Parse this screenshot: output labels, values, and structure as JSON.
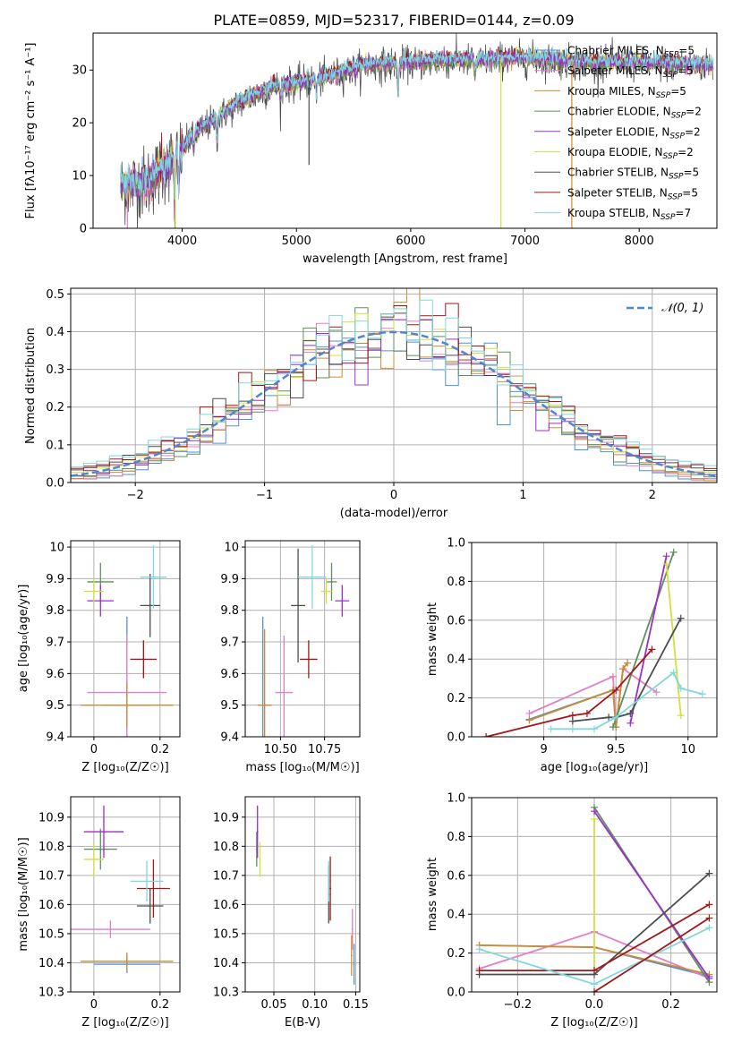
{
  "figure_title": "PLATE=0859, MJD=52317, FIBERID=0144, z=0.09",
  "colors": {
    "Chabrier MILES": "#4c92e0",
    "Salpeter MILES": "#e27fc5",
    "Kroupa MILES": "#d08a2f",
    "Chabrier ELODIE": "#5e8f5e",
    "Salpeter ELODIE": "#9b30c8",
    "Kroupa ELODIE": "#d0e040",
    "Chabrier STELIB": "#4d4d4d",
    "Salpeter STELIB": "#a11818",
    "Kroupa STELIB": "#7fd8e0",
    "gauss": "#4f86cf"
  },
  "chart_data": [
    {
      "id": "spectrum",
      "type": "line",
      "title": "PLATE=0859, MJD=52317, FIBERID=0144, z=0.09",
      "xlabel": "wavelength [Angstrom, rest frame]",
      "ylabel": "Flux [fλ10⁻¹⁷ erg cm⁻² s⁻¹ A⁻¹]",
      "xlim": [
        3220,
        8680
      ],
      "ylim": [
        0,
        37
      ],
      "xticks": [
        4000,
        5000,
        6000,
        7000,
        8000
      ],
      "yticks": [
        0,
        10,
        20,
        30
      ],
      "legend": "top-right",
      "series": [
        {
          "name": "Chabrier MILES, N_SSP=5",
          "key": "Chabrier MILES"
        },
        {
          "name": "Salpeter MILES, N_SSP=5",
          "key": "Salpeter MILES"
        },
        {
          "name": "Kroupa MILES, N_SSP=5",
          "key": "Kroupa MILES"
        },
        {
          "name": "Chabrier ELODIE, N_SSP=2",
          "key": "Chabrier ELODIE"
        },
        {
          "name": "Salpeter ELODIE, N_SSP=2",
          "key": "Salpeter ELODIE"
        },
        {
          "name": "Kroupa ELODIE, N_SSP=2",
          "key": "Kroupa ELODIE"
        },
        {
          "name": "Chabrier STELIB, N_SSP=5",
          "key": "Chabrier STELIB"
        },
        {
          "name": "Salpeter STELIB, N_SSP=5",
          "key": "Salpeter STELIB"
        },
        {
          "name": "Kroupa STELIB, N_SSP=7",
          "key": "Kroupa STELIB"
        }
      ],
      "continuum": [
        [
          3460,
          8
        ],
        [
          3700,
          9
        ],
        [
          3960,
          14
        ],
        [
          4100,
          18
        ],
        [
          4300,
          21
        ],
        [
          4500,
          24
        ],
        [
          4800,
          27
        ],
        [
          5100,
          28
        ],
        [
          5300,
          29
        ],
        [
          5600,
          31
        ],
        [
          5900,
          31.5
        ],
        [
          6000,
          31.5
        ],
        [
          6300,
          32
        ],
        [
          6600,
          32
        ],
        [
          6900,
          32.5
        ],
        [
          7300,
          32
        ],
        [
          7500,
          31.5
        ],
        [
          8000,
          31.5
        ],
        [
          8700,
          31
        ]
      ]
    },
    {
      "id": "residuals",
      "type": "line",
      "xlabel": "(data-model)/error",
      "ylabel": "Normed distribution",
      "xlim": [
        -2.5,
        2.5
      ],
      "ylim": [
        0,
        0.515
      ],
      "xticks": [
        -2,
        -1,
        0,
        1,
        2
      ],
      "yticks": [
        0.0,
        0.1,
        0.2,
        0.3,
        0.4,
        0.5
      ],
      "grid": true,
      "legend": "top-right",
      "gauss_label": "𝒩(0, 1)"
    },
    {
      "id": "age-vs-Z",
      "type": "scatter",
      "xlabel": "Z [log₁₀(Z/Z☉)]",
      "ylabel": "age  [log₁₀(age/yr)]",
      "xlim": [
        -0.07,
        0.26
      ],
      "ylim": [
        9.4,
        10.02
      ],
      "xticks": [
        0.0,
        0.2
      ],
      "yticks": [
        9.4,
        9.5,
        9.6,
        9.7,
        9.8,
        9.9,
        10.0
      ],
      "grid": true,
      "points": [
        {
          "key": "Chabrier MILES",
          "x": 0.1,
          "y": 9.5,
          "xerr": 0.07,
          "yerr": 0.28
        },
        {
          "key": "Salpeter MILES",
          "x": 0.1,
          "y": 9.54,
          "xerr": 0.12,
          "yerr": 0.18
        },
        {
          "key": "Kroupa MILES",
          "x": 0.1,
          "y": 9.5,
          "xerr": 0.14,
          "yerr": 0.07
        },
        {
          "key": "Chabrier ELODIE",
          "x": 0.02,
          "y": 9.89,
          "xerr": 0.04,
          "yerr": 0.06
        },
        {
          "key": "Salpeter ELODIE",
          "x": 0.02,
          "y": 9.83,
          "xerr": 0.04,
          "yerr": 0.05
        },
        {
          "key": "Kroupa ELODIE",
          "x": 0.0,
          "y": 9.86,
          "xerr": 0.03,
          "yerr": 0.04
        },
        {
          "key": "Chabrier STELIB",
          "x": 0.17,
          "y": 9.815,
          "xerr": 0.03,
          "yerr": 0.1
        },
        {
          "key": "Salpeter STELIB",
          "x": 0.15,
          "y": 9.645,
          "xerr": 0.04,
          "yerr": 0.06
        },
        {
          "key": "Kroupa STELIB",
          "x": 0.18,
          "y": 9.905,
          "xerr": 0.04,
          "yerr": 0.1
        }
      ]
    },
    {
      "id": "age-vs-mass",
      "type": "scatter",
      "xlabel": "mass [log₁₀(M/M☉)]",
      "xlim": [
        10.3,
        10.95
      ],
      "ylim": [
        9.4,
        10.02
      ],
      "xticks": [
        10.5,
        10.75
      ],
      "xticklabels": [
        "10.50",
        "10.75"
      ],
      "yticks": [
        9.4,
        9.5,
        9.6,
        9.7,
        9.8,
        9.9,
        10.0
      ],
      "grid": true,
      "points": [
        {
          "key": "Chabrier MILES",
          "x": 10.4,
          "y": 9.5,
          "xerr": 0.02,
          "yerr": 0.28
        },
        {
          "key": "Salpeter MILES",
          "x": 10.52,
          "y": 9.54,
          "xerr": 0.05,
          "yerr": 0.18
        },
        {
          "key": "Kroupa MILES",
          "x": 10.41,
          "y": 9.5,
          "xerr": 0.04,
          "yerr": 0.24
        },
        {
          "key": "Chabrier ELODIE",
          "x": 10.79,
          "y": 9.89,
          "xerr": 0.03,
          "yerr": 0.06
        },
        {
          "key": "Salpeter ELODIE",
          "x": 10.85,
          "y": 9.83,
          "xerr": 0.04,
          "yerr": 0.05
        },
        {
          "key": "Kroupa ELODIE",
          "x": 10.76,
          "y": 9.86,
          "xerr": 0.03,
          "yerr": 0.04
        },
        {
          "key": "Chabrier STELIB",
          "x": 10.6,
          "y": 9.815,
          "xerr": 0.04,
          "yerr": 0.18
        },
        {
          "key": "Salpeter STELIB",
          "x": 10.66,
          "y": 9.645,
          "xerr": 0.05,
          "yerr": 0.06
        },
        {
          "key": "Kroupa STELIB",
          "x": 10.68,
          "y": 9.905,
          "xerr": 0.08,
          "yerr": 0.1
        }
      ]
    },
    {
      "id": "weight-vs-age",
      "type": "line",
      "xlabel": "age  [log₁₀(age/yr)]",
      "ylabel": "mass weight",
      "xlim": [
        8.5,
        10.2
      ],
      "ylim": [
        0,
        1.0
      ],
      "xticks": [
        9.0,
        9.5,
        10.0
      ],
      "yticks": [
        0.0,
        0.2,
        0.4,
        0.6,
        0.8,
        1.0
      ],
      "grid": true,
      "series": [
        {
          "key": "Chabrier MILES",
          "x": [
            8.9,
            9.48,
            9.5,
            9.55,
            9.58
          ],
          "y": [
            0.09,
            0.24,
            0.05,
            0.35,
            0.38
          ]
        },
        {
          "key": "Salpeter MILES",
          "x": [
            8.9,
            9.48,
            9.5,
            9.55,
            9.78
          ],
          "y": [
            0.12,
            0.31,
            0.05,
            0.35,
            0.23
          ]
        },
        {
          "key": "Kroupa MILES",
          "x": [
            8.9,
            9.48,
            9.5,
            9.55,
            9.58
          ],
          "y": [
            0.085,
            0.24,
            0.05,
            0.35,
            0.38
          ]
        },
        {
          "key": "Chabrier ELODIE",
          "x": [
            9.48,
            9.9
          ],
          "y": [
            0.05,
            0.95
          ]
        },
        {
          "key": "Salpeter ELODIE",
          "x": [
            9.6,
            9.85
          ],
          "y": [
            0.07,
            0.93
          ]
        },
        {
          "key": "Kroupa ELODIE",
          "x": [
            9.85,
            9.95
          ],
          "y": [
            0.89,
            0.11
          ]
        },
        {
          "key": "Chabrier STELIB",
          "x": [
            9.2,
            9.45,
            9.5,
            9.6,
            9.95
          ],
          "y": [
            0.08,
            0.1,
            0.1,
            0.12,
            0.61
          ]
        },
        {
          "key": "Salpeter STELIB",
          "x": [
            8.6,
            9.2,
            9.3,
            9.5,
            9.75
          ],
          "y": [
            0.0,
            0.11,
            0.12,
            0.24,
            0.45
          ]
        },
        {
          "key": "Kroupa STELIB",
          "x": [
            9.05,
            9.2,
            9.35,
            9.5,
            9.9,
            9.95,
            10.1
          ],
          "y": [
            0.04,
            0.04,
            0.04,
            0.1,
            0.33,
            0.25,
            0.22
          ]
        }
      ]
    },
    {
      "id": "mass-vs-Z",
      "type": "scatter",
      "xlabel": "Z [log₁₀(Z/Z☉)]",
      "ylabel": "mass [log₁₀(M/M☉)]",
      "xlim": [
        -0.07,
        0.26
      ],
      "ylim": [
        10.3,
        10.97
      ],
      "xticks": [
        0.0,
        0.2
      ],
      "yticks": [
        10.3,
        10.4,
        10.5,
        10.6,
        10.7,
        10.8,
        10.9
      ],
      "grid": true,
      "points": [
        {
          "key": "Chabrier MILES",
          "x": 0.1,
          "y": 10.395,
          "xerr": 0.1,
          "yerr": 0.03
        },
        {
          "key": "Salpeter MILES",
          "x": 0.05,
          "y": 10.515,
          "xerr": 0.12,
          "yerr": 0.03
        },
        {
          "key": "Kroupa MILES",
          "x": 0.1,
          "y": 10.405,
          "xerr": 0.14,
          "yerr": 0.03
        },
        {
          "key": "Chabrier ELODIE",
          "x": 0.02,
          "y": 10.79,
          "xerr": 0.05,
          "yerr": 0.07
        },
        {
          "key": "Salpeter ELODIE",
          "x": 0.03,
          "y": 10.85,
          "xerr": 0.06,
          "yerr": 0.09
        },
        {
          "key": "Kroupa ELODIE",
          "x": 0.0,
          "y": 10.755,
          "xerr": 0.03,
          "yerr": 0.06
        },
        {
          "key": "Chabrier STELIB",
          "x": 0.17,
          "y": 10.595,
          "xerr": 0.04,
          "yerr": 0.06
        },
        {
          "key": "Salpeter STELIB",
          "x": 0.18,
          "y": 10.655,
          "xerr": 0.05,
          "yerr": 0.1
        },
        {
          "key": "Kroupa STELIB",
          "x": 0.16,
          "y": 10.68,
          "xerr": 0.05,
          "yerr": 0.07
        }
      ]
    },
    {
      "id": "mass-vs-EBV",
      "type": "scatter",
      "xlabel": "E(B-V)",
      "xlim": [
        0.015,
        0.155
      ],
      "ylim": [
        10.3,
        10.97
      ],
      "xticks": [
        0.05,
        0.1,
        0.15
      ],
      "xticklabels": [
        "0.05",
        "0.10",
        "0.15"
      ],
      "yticks": [
        10.3,
        10.4,
        10.5,
        10.6,
        10.7,
        10.8,
        10.9
      ],
      "grid": true,
      "points": [
        {
          "key": "Chabrier MILES",
          "x": 0.148,
          "y": 10.395,
          "xerr": 0.001,
          "yerr": 0.07
        },
        {
          "key": "Salpeter MILES",
          "x": 0.146,
          "y": 10.515,
          "xerr": 0.001,
          "yerr": 0.07
        },
        {
          "key": "Kroupa MILES",
          "x": 0.145,
          "y": 10.425,
          "xerr": 0.001,
          "yerr": 0.07
        },
        {
          "key": "Chabrier ELODIE",
          "x": 0.029,
          "y": 10.79,
          "xerr": 0.001,
          "yerr": 0.06
        },
        {
          "key": "Salpeter ELODIE",
          "x": 0.03,
          "y": 10.85,
          "xerr": 0.001,
          "yerr": 0.09
        },
        {
          "key": "Kroupa ELODIE",
          "x": 0.033,
          "y": 10.755,
          "xerr": 0.001,
          "yerr": 0.06
        },
        {
          "key": "Chabrier STELIB",
          "x": 0.117,
          "y": 10.635,
          "xerr": 0.001,
          "yerr": 0.1
        },
        {
          "key": "Salpeter STELIB",
          "x": 0.119,
          "y": 10.655,
          "xerr": 0.001,
          "yerr": 0.11
        },
        {
          "key": "Kroupa STELIB",
          "x": 0.117,
          "y": 10.68,
          "xerr": 0.001,
          "yerr": 0.07
        }
      ]
    },
    {
      "id": "weight-vs-Z",
      "type": "line",
      "xlabel": "Z [log₁₀(Z/Z☉)]",
      "ylabel": "mass weight",
      "xlim": [
        -0.32,
        0.32
      ],
      "ylim": [
        0,
        1.0
      ],
      "xticks": [
        -0.2,
        0.0,
        0.2
      ],
      "xticklabels": [
        "−0.2",
        "0.0",
        "0.2"
      ],
      "yticks": [
        0.0,
        0.2,
        0.4,
        0.6,
        0.8,
        1.0
      ],
      "grid": true,
      "series": [
        {
          "key": "Chabrier MILES",
          "x": [
            -0.3,
            0.0,
            0.3
          ],
          "y": [
            0.24,
            0.23,
            0.08
          ]
        },
        {
          "key": "Salpeter MILES",
          "x": [
            -0.3,
            0.0,
            0.3
          ],
          "y": [
            0.12,
            0.31,
            0.07
          ]
        },
        {
          "key": "Kroupa MILES",
          "x": [
            -0.3,
            0.0,
            0.3
          ],
          "y": [
            0.24,
            0.23,
            0.09
          ]
        },
        {
          "key": "Chabrier ELODIE",
          "x": [
            0.0,
            0.3
          ],
          "y": [
            0.95,
            0.05
          ]
        },
        {
          "key": "Salpeter ELODIE",
          "x": [
            0.0,
            0.3
          ],
          "y": [
            0.93,
            0.07
          ]
        },
        {
          "key": "Kroupa ELODIE",
          "x": [
            0.0,
            0.0
          ],
          "y": [
            0.89,
            0.11
          ]
        },
        {
          "key": "Chabrier STELIB",
          "x": [
            -0.3,
            0.0,
            0.3
          ],
          "y": [
            0.09,
            0.09,
            0.61
          ]
        },
        {
          "key": "Salpeter STELIB",
          "x": [
            -0.3,
            0.0,
            0.3
          ],
          "y": [
            0.11,
            0.11,
            0.45
          ]
        },
        {
          "key": "Kroupa STELIB",
          "x": [
            -0.3,
            0.0,
            0.3
          ],
          "y": [
            0.22,
            0.04,
            0.33
          ]
        },
        {
          "key": "Salpeter STELIB",
          "x": [
            0.0,
            0.3
          ],
          "y": [
            0.0,
            0.38
          ]
        }
      ]
    }
  ]
}
